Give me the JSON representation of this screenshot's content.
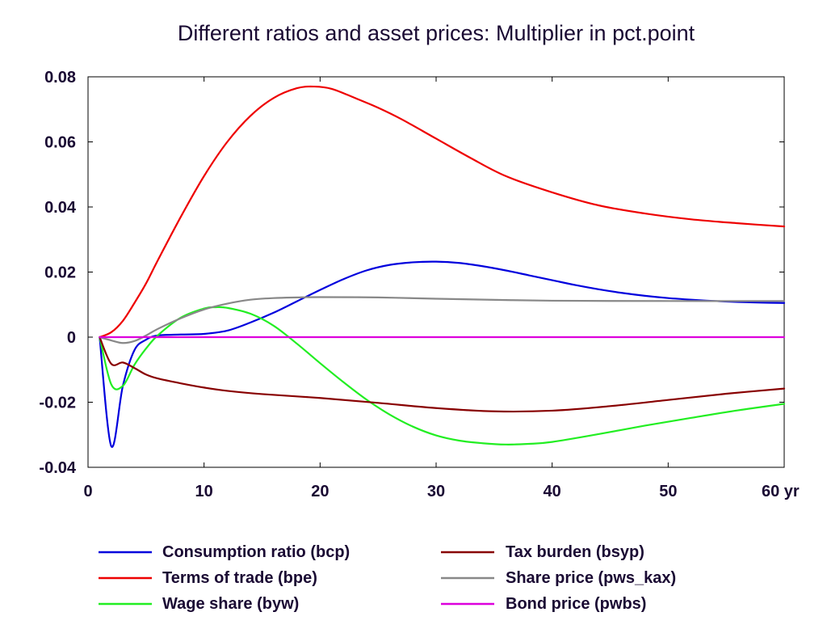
{
  "chart_data": {
    "type": "line",
    "title": "Different ratios and asset prices: Multiplier in pct.point",
    "xlabel": "",
    "ylabel": "",
    "x_unit_label": "yr",
    "xlim": [
      0,
      60
    ],
    "ylim": [
      -0.04,
      0.08
    ],
    "x_ticks": [
      0,
      10,
      20,
      30,
      40,
      50,
      60
    ],
    "x_tick_labels": [
      "0",
      "10",
      "20",
      "30",
      "40",
      "50",
      "60 yr"
    ],
    "y_ticks": [
      -0.04,
      -0.02,
      0,
      0.02,
      0.04,
      0.06,
      0.08
    ],
    "y_tick_labels": [
      "-0.04",
      "-0.02",
      "0",
      "0.02",
      "0.04",
      "0.06",
      "0.08"
    ],
    "grid": false,
    "legend_position": "bottom",
    "series": [
      {
        "name": "Consumption ratio (bcp)",
        "color": "#0000dd",
        "x": [
          1,
          2,
          3,
          4,
          5,
          6,
          8,
          10,
          12,
          14,
          16,
          18,
          20,
          22,
          24,
          26,
          28,
          30,
          32,
          34,
          36,
          38,
          40,
          42,
          44,
          46,
          48,
          50,
          52,
          54,
          56,
          58,
          60
        ],
        "y": [
          0,
          -0.0335,
          -0.015,
          -0.004,
          -0.0008,
          0.0005,
          0.0008,
          0.001,
          0.002,
          0.0045,
          0.0075,
          0.011,
          0.0145,
          0.0178,
          0.0205,
          0.0222,
          0.023,
          0.0232,
          0.0228,
          0.0218,
          0.0205,
          0.019,
          0.0175,
          0.016,
          0.0147,
          0.0136,
          0.0127,
          0.012,
          0.0115,
          0.0111,
          0.0108,
          0.0106,
          0.0105
        ]
      },
      {
        "name": "Terms of trade (bpe)",
        "color": "#ee0000",
        "x": [
          1,
          2,
          3,
          4,
          5,
          6,
          8,
          10,
          12,
          14,
          16,
          18,
          19.5,
          21,
          23,
          25,
          27,
          30,
          33,
          36,
          40,
          44,
          48,
          52,
          56,
          60
        ],
        "y": [
          0,
          0.0015,
          0.005,
          0.0105,
          0.0165,
          0.0235,
          0.037,
          0.0495,
          0.06,
          0.068,
          0.0735,
          0.0765,
          0.077,
          0.0763,
          0.0735,
          0.0705,
          0.067,
          0.061,
          0.055,
          0.0495,
          0.0445,
          0.0405,
          0.038,
          0.0362,
          0.035,
          0.034
        ]
      },
      {
        "name": "Wage share (byw)",
        "color": "#22ee22",
        "x": [
          1,
          2,
          3,
          4,
          5,
          6,
          8,
          10,
          11,
          12,
          14,
          16,
          18,
          20,
          22,
          24,
          26,
          28,
          30,
          32,
          34,
          36,
          38,
          40,
          44,
          48,
          52,
          56,
          60
        ],
        "y": [
          0,
          -0.0145,
          -0.015,
          -0.0085,
          -0.0035,
          0.0005,
          0.006,
          0.0088,
          0.0092,
          0.009,
          0.0072,
          0.0035,
          -0.002,
          -0.008,
          -0.0138,
          -0.0192,
          -0.0238,
          -0.0275,
          -0.0302,
          -0.0318,
          -0.0326,
          -0.033,
          -0.0328,
          -0.0322,
          -0.0298,
          -0.0272,
          -0.0248,
          -0.0225,
          -0.0205
        ]
      },
      {
        "name": "Tax burden (bsyp)",
        "color": "#880000",
        "x": [
          1,
          2,
          3,
          4,
          5,
          6,
          8,
          10,
          12,
          15,
          20,
          25,
          30,
          35,
          40,
          45,
          50,
          55,
          60
        ],
        "y": [
          0,
          -0.0082,
          -0.0078,
          -0.0095,
          -0.0115,
          -0.0127,
          -0.0142,
          -0.0155,
          -0.0165,
          -0.0175,
          -0.0187,
          -0.0202,
          -0.0218,
          -0.0228,
          -0.0226,
          -0.0212,
          -0.0193,
          -0.0174,
          -0.0158
        ]
      },
      {
        "name": "Share price (pws_kax)",
        "color": "#888888",
        "x": [
          1,
          2,
          3,
          4,
          5,
          6,
          8,
          10,
          12,
          14,
          16,
          18,
          20,
          25,
          30,
          40,
          50,
          60
        ],
        "y": [
          0,
          -0.001,
          -0.0018,
          -0.0012,
          0.0005,
          0.0025,
          0.0058,
          0.0085,
          0.0103,
          0.0115,
          0.012,
          0.0122,
          0.0123,
          0.0122,
          0.0118,
          0.0112,
          0.0111,
          0.0111
        ]
      },
      {
        "name": "Bond price (pwbs)",
        "color": "#dd00dd",
        "x": [
          1,
          60
        ],
        "y": [
          0,
          0
        ]
      }
    ]
  }
}
